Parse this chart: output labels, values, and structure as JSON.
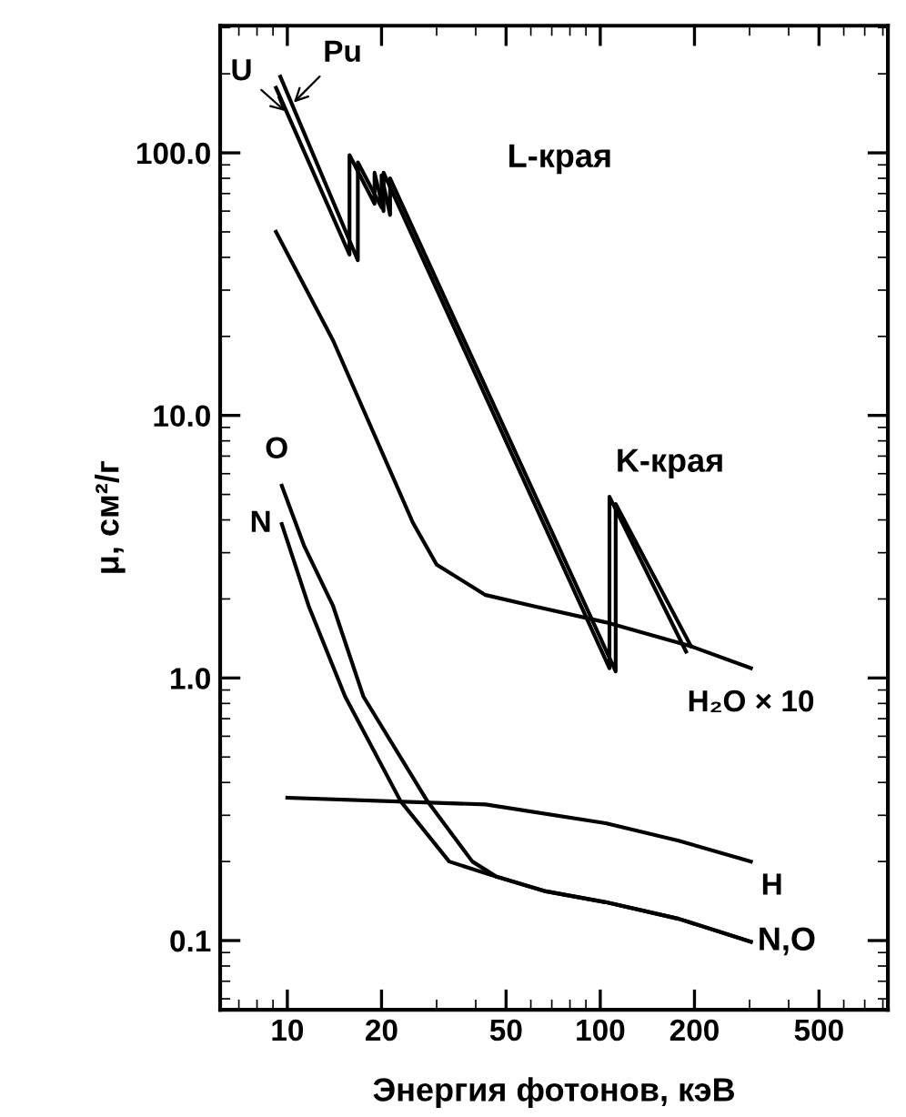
{
  "chart_data": {
    "type": "line",
    "xlabel": "Энергия фотонов, кэВ",
    "ylabel": "μ, см²/г",
    "log": "xy",
    "grid": false,
    "legend": "right",
    "marker": "none",
    "line_style": "solid",
    "xlim": [
      6.1,
      830
    ],
    "ylim": [
      0.0545,
      305
    ],
    "xticks": [
      10,
      20,
      50,
      100,
      200,
      500
    ],
    "yticks": [
      {
        "value": 0.1,
        "label": "0.1"
      },
      {
        "value": 1,
        "label": "1.0"
      },
      {
        "value": 10,
        "label": "10.0"
      },
      {
        "value": 100,
        "label": "100.0"
      }
    ],
    "series": [
      {
        "name": "U",
        "color": "#000000",
        "x": [
          9.2,
          15.8,
          15.8,
          19.0,
          19.0,
          20.3,
          20.3,
          107,
          107,
          188
        ],
        "values": [
          177,
          41,
          98,
          64,
          84,
          60,
          84,
          1.09,
          4.9,
          1.26
        ]
      },
      {
        "name": "Pu",
        "color": "#000000",
        "x": [
          9.5,
          16.8,
          16.8,
          20.0,
          20.0,
          21.3,
          21.3,
          112,
          112,
          195
        ],
        "values": [
          195,
          39,
          92,
          62,
          82,
          58,
          80,
          1.06,
          4.6,
          1.32
        ]
      },
      {
        "name": "H₂O × 10",
        "color": "#000000",
        "x": [
          9.2,
          14,
          25.2,
          30,
          43,
          61,
          104,
          195,
          303
        ],
        "values": [
          50,
          19.3,
          3.9,
          2.7,
          2.07,
          1.88,
          1.63,
          1.32,
          1.09
        ]
      },
      {
        "name": "O",
        "color": "#000000",
        "x": [
          9.6,
          11.3,
          14,
          17.5,
          28,
          39,
          46.6,
          67,
          104,
          178,
          303
        ],
        "values": [
          5.4,
          3.2,
          1.88,
          0.85,
          0.34,
          0.2,
          0.175,
          0.154,
          0.14,
          0.121,
          0.099
        ]
      },
      {
        "name": "N",
        "color": "#000000",
        "x": [
          9.6,
          11.7,
          15.3,
          23,
          32.9,
          46.6,
          67,
          104,
          178,
          303
        ],
        "values": [
          3.86,
          1.88,
          0.85,
          0.34,
          0.2,
          0.175,
          0.154,
          0.14,
          0.121,
          0.099
        ]
      },
      {
        "name": "H",
        "color": "#000000",
        "x": [
          10,
          43,
          104,
          178,
          303
        ],
        "values": [
          0.35,
          0.33,
          0.28,
          0.24,
          0.2
        ]
      }
    ],
    "annotations": [
      "L-края",
      {
        "text": "K-края",
        "x": 112,
        "y": 5
      },
      {
        "text": "N,O",
        "x": 303,
        "y": 0.099
      }
    ]
  }
}
